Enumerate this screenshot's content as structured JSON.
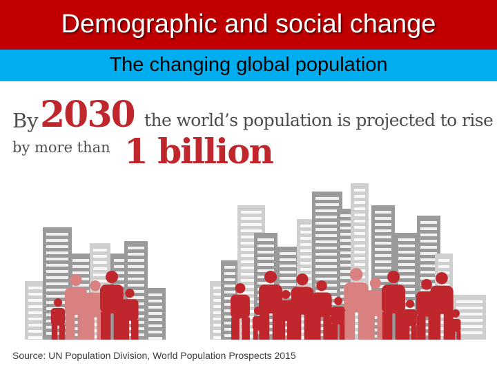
{
  "header": {
    "title": "Demographic and social change",
    "subtitle": "The changing global population"
  },
  "headline": {
    "by": "By",
    "year": "2030",
    "rest": "the world’s population is projected to rise",
    "more_than": "by more than",
    "amount": "1 billion"
  },
  "source": "Source: UN Population Division, World Population Prospects 2015",
  "colors": {
    "title_bar": "#c00000",
    "subtitle_bar": "#00aeef",
    "accent_red": "#c0272d",
    "building_grey": "#9a9a9a",
    "building_light": "#cfcfcf"
  },
  "illustration": {
    "icons": [
      "city-skyline-icon",
      "people-crowd-icon"
    ]
  }
}
